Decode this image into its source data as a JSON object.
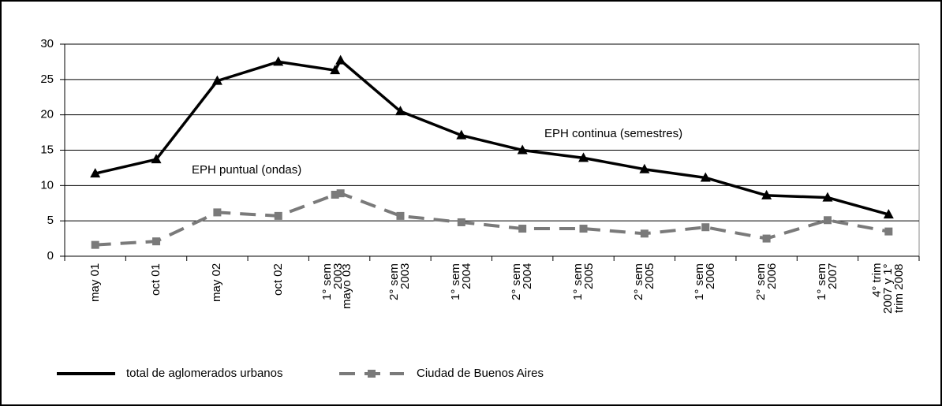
{
  "chart_data": {
    "type": "line",
    "categories": [
      "may 01",
      "oct 01",
      "may 02",
      "oct 02",
      "1° sem 2003",
      "mayo 03",
      "2° sem 2003",
      "1° sem 2004",
      "2° sem 2004",
      "1° sem 2005",
      "2° sem 2005",
      "1° sem 2006",
      "2° sem 2006",
      "1° sem 2007",
      "4° trim 2007 y 1° trim 2008"
    ],
    "series": [
      {
        "name": "total de aglomerados urbanos",
        "color": "#000000",
        "values": [
          11.7,
          13.7,
          24.8,
          27.5,
          26.3,
          27.7,
          20.5,
          17.1,
          15.0,
          13.9,
          12.3,
          11.1,
          8.6,
          8.3,
          5.9
        ]
      },
      {
        "name": "Ciudad de Buenos Aires",
        "color": "#7a7a7a",
        "values": [
          1.6,
          2.1,
          6.2,
          5.7,
          8.7,
          8.9,
          5.7,
          4.8,
          3.9,
          3.9,
          3.2,
          4.1,
          2.5,
          5.1,
          3.5
        ]
      }
    ],
    "annotations": [
      "EPH continua (semestres)",
      "EPH puntual (ondas)"
    ],
    "ylim": [
      0,
      30
    ],
    "yticks": [
      0,
      5,
      10,
      15,
      20,
      25,
      30
    ],
    "grid": true,
    "legend": "bottom-left"
  }
}
